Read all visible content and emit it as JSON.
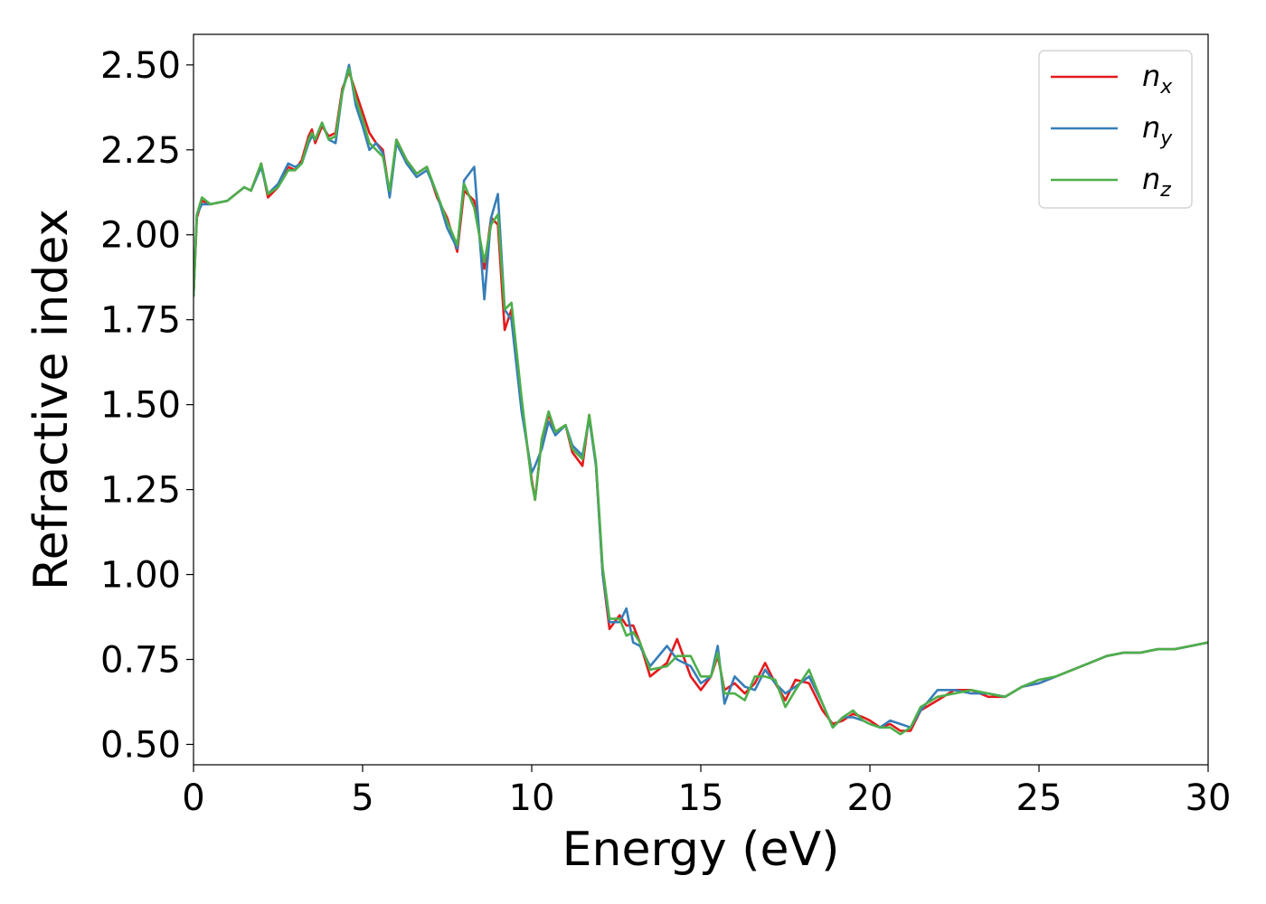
{
  "chart_data": {
    "type": "line",
    "xlabel": "Energy (eV)",
    "ylabel": "Refractive index",
    "xlim": [
      0,
      30
    ],
    "ylim": [
      0.44,
      2.59
    ],
    "x_ticks": [
      "0",
      "5",
      "10",
      "15",
      "20",
      "25",
      "30"
    ],
    "y_ticks": [
      "0.50",
      "0.75",
      "1.00",
      "1.25",
      "1.50",
      "1.75",
      "2.00",
      "2.25",
      "2.50"
    ],
    "grid": false,
    "legend_position": "top-right",
    "series": [
      {
        "name": "n",
        "subscript": "x",
        "color": "#e41a1c",
        "x": [
          0,
          0.1,
          0.25,
          0.5,
          1,
          1.5,
          1.7,
          2,
          2.2,
          2.5,
          2.8,
          3,
          3.2,
          3.4,
          3.5,
          3.6,
          3.8,
          4,
          4.2,
          4.4,
          4.6,
          4.8,
          5,
          5.2,
          5.4,
          5.6,
          5.8,
          6,
          6.3,
          6.6,
          6.9,
          7.2,
          7.5,
          7.8,
          8,
          8.3,
          8.6,
          8.8,
          9,
          9.2,
          9.4,
          9.7,
          10,
          10.1,
          10.3,
          10.5,
          10.7,
          11,
          11.2,
          11.5,
          11.7,
          11.9,
          12.1,
          12.3,
          12.6,
          12.8,
          13,
          13.2,
          13.5,
          14,
          14.3,
          14.7,
          15,
          15.3,
          15.5,
          15.7,
          16,
          16.3,
          16.6,
          16.9,
          17.2,
          17.5,
          17.8,
          18.2,
          18.6,
          18.9,
          19.2,
          19.5,
          19.8,
          20,
          20.3,
          20.6,
          20.9,
          21.2,
          21.5,
          22,
          22.5,
          23,
          23.5,
          24,
          24.5,
          25,
          25.5,
          26,
          26.5,
          27,
          27.5,
          28,
          28.5,
          29,
          29.5,
          30
        ],
        "y": [
          1.82,
          2.05,
          2.1,
          2.09,
          2.1,
          2.14,
          2.13,
          2.21,
          2.11,
          2.14,
          2.2,
          2.19,
          2.22,
          2.29,
          2.31,
          2.27,
          2.32,
          2.29,
          2.3,
          2.43,
          2.48,
          2.42,
          2.36,
          2.3,
          2.27,
          2.25,
          2.12,
          2.28,
          2.22,
          2.18,
          2.2,
          2.11,
          2.05,
          1.95,
          2.13,
          2.1,
          1.9,
          2.05,
          2.03,
          1.72,
          1.78,
          1.5,
          1.28,
          1.22,
          1.4,
          1.47,
          1.42,
          1.44,
          1.36,
          1.32,
          1.47,
          1.32,
          1.0,
          0.84,
          0.88,
          0.85,
          0.85,
          0.8,
          0.7,
          0.74,
          0.81,
          0.7,
          0.66,
          0.7,
          0.76,
          0.66,
          0.68,
          0.65,
          0.68,
          0.74,
          0.68,
          0.63,
          0.69,
          0.68,
          0.6,
          0.56,
          0.57,
          0.59,
          0.58,
          0.57,
          0.55,
          0.56,
          0.54,
          0.54,
          0.6,
          0.63,
          0.66,
          0.66,
          0.64,
          0.64,
          0.67,
          0.68,
          0.7,
          0.72,
          0.74,
          0.76,
          0.77,
          0.77,
          0.78,
          0.78,
          0.79,
          0.8
        ]
      },
      {
        "name": "n",
        "subscript": "y",
        "color": "#377eb8",
        "x": [
          0,
          0.1,
          0.25,
          0.5,
          1,
          1.5,
          1.7,
          2,
          2.2,
          2.5,
          2.8,
          3,
          3.2,
          3.4,
          3.5,
          3.6,
          3.8,
          4,
          4.2,
          4.4,
          4.6,
          4.8,
          5,
          5.2,
          5.4,
          5.6,
          5.8,
          6,
          6.3,
          6.6,
          6.9,
          7.2,
          7.5,
          7.8,
          8,
          8.3,
          8.6,
          8.8,
          9,
          9.2,
          9.4,
          9.7,
          10,
          10.1,
          10.3,
          10.5,
          10.7,
          11,
          11.2,
          11.5,
          11.7,
          11.9,
          12.1,
          12.3,
          12.6,
          12.8,
          13,
          13.2,
          13.5,
          14,
          14.3,
          14.7,
          15,
          15.3,
          15.5,
          15.7,
          16,
          16.3,
          16.6,
          16.9,
          17.2,
          17.5,
          17.8,
          18.2,
          18.6,
          18.9,
          19.2,
          19.5,
          19.8,
          20,
          20.3,
          20.6,
          20.9,
          21.2,
          21.5,
          22,
          22.5,
          23,
          23.5,
          24,
          24.5,
          25,
          25.5,
          26,
          26.5,
          27,
          27.5,
          28,
          28.5,
          29,
          29.5,
          30
        ],
        "y": [
          1.82,
          2.06,
          2.09,
          2.09,
          2.1,
          2.14,
          2.13,
          2.2,
          2.12,
          2.15,
          2.21,
          2.2,
          2.21,
          2.27,
          2.29,
          2.28,
          2.33,
          2.28,
          2.27,
          2.42,
          2.5,
          2.38,
          2.32,
          2.25,
          2.27,
          2.24,
          2.11,
          2.27,
          2.21,
          2.17,
          2.19,
          2.12,
          2.02,
          1.96,
          2.16,
          2.2,
          1.81,
          2.05,
          2.12,
          1.78,
          1.75,
          1.48,
          1.3,
          1.32,
          1.37,
          1.45,
          1.41,
          1.44,
          1.38,
          1.35,
          1.46,
          1.32,
          1.0,
          0.86,
          0.86,
          0.9,
          0.8,
          0.79,
          0.73,
          0.79,
          0.75,
          0.73,
          0.68,
          0.7,
          0.79,
          0.62,
          0.7,
          0.67,
          0.66,
          0.72,
          0.68,
          0.65,
          0.67,
          0.7,
          0.62,
          0.55,
          0.58,
          0.58,
          0.57,
          0.56,
          0.55,
          0.57,
          0.56,
          0.55,
          0.6,
          0.66,
          0.66,
          0.65,
          0.65,
          0.64,
          0.67,
          0.68,
          0.7,
          0.72,
          0.74,
          0.76,
          0.77,
          0.77,
          0.78,
          0.78,
          0.79,
          0.8
        ]
      },
      {
        "name": "n",
        "subscript": "z",
        "color": "#4daf4a",
        "x": [
          0,
          0.1,
          0.25,
          0.5,
          1,
          1.5,
          1.7,
          2,
          2.2,
          2.5,
          2.8,
          3,
          3.2,
          3.4,
          3.5,
          3.6,
          3.8,
          4,
          4.2,
          4.4,
          4.6,
          4.8,
          5,
          5.2,
          5.4,
          5.6,
          5.8,
          6,
          6.3,
          6.6,
          6.9,
          7.2,
          7.5,
          7.8,
          8,
          8.3,
          8.6,
          8.8,
          9,
          9.2,
          9.4,
          9.7,
          10,
          10.1,
          10.3,
          10.5,
          10.7,
          11,
          11.2,
          11.5,
          11.7,
          11.9,
          12.1,
          12.3,
          12.6,
          12.8,
          13,
          13.2,
          13.5,
          14,
          14.3,
          14.7,
          15,
          15.3,
          15.5,
          15.7,
          16,
          16.3,
          16.6,
          16.9,
          17.2,
          17.5,
          17.8,
          18.2,
          18.6,
          18.9,
          19.2,
          19.5,
          19.8,
          20,
          20.3,
          20.6,
          20.9,
          21.2,
          21.5,
          22,
          22.5,
          23,
          23.5,
          24,
          24.5,
          25,
          25.5,
          26,
          26.5,
          27,
          27.5,
          28,
          28.5,
          29,
          29.5,
          30
        ],
        "y": [
          1.82,
          2.06,
          2.11,
          2.09,
          2.1,
          2.14,
          2.13,
          2.21,
          2.12,
          2.14,
          2.19,
          2.19,
          2.21,
          2.28,
          2.3,
          2.28,
          2.33,
          2.28,
          2.29,
          2.42,
          2.49,
          2.4,
          2.34,
          2.27,
          2.25,
          2.23,
          2.13,
          2.28,
          2.22,
          2.18,
          2.2,
          2.12,
          2.04,
          1.97,
          2.15,
          2.08,
          1.92,
          2.03,
          2.06,
          1.78,
          1.8,
          1.52,
          1.27,
          1.22,
          1.4,
          1.48,
          1.42,
          1.44,
          1.37,
          1.34,
          1.47,
          1.33,
          1.02,
          0.87,
          0.87,
          0.82,
          0.83,
          0.8,
          0.72,
          0.73,
          0.76,
          0.76,
          0.7,
          0.7,
          0.77,
          0.65,
          0.65,
          0.63,
          0.7,
          0.7,
          0.69,
          0.61,
          0.66,
          0.72,
          0.62,
          0.55,
          0.58,
          0.6,
          0.57,
          0.56,
          0.55,
          0.55,
          0.53,
          0.55,
          0.61,
          0.64,
          0.65,
          0.66,
          0.65,
          0.64,
          0.67,
          0.69,
          0.7,
          0.72,
          0.74,
          0.76,
          0.77,
          0.77,
          0.78,
          0.78,
          0.79,
          0.8
        ]
      }
    ]
  }
}
